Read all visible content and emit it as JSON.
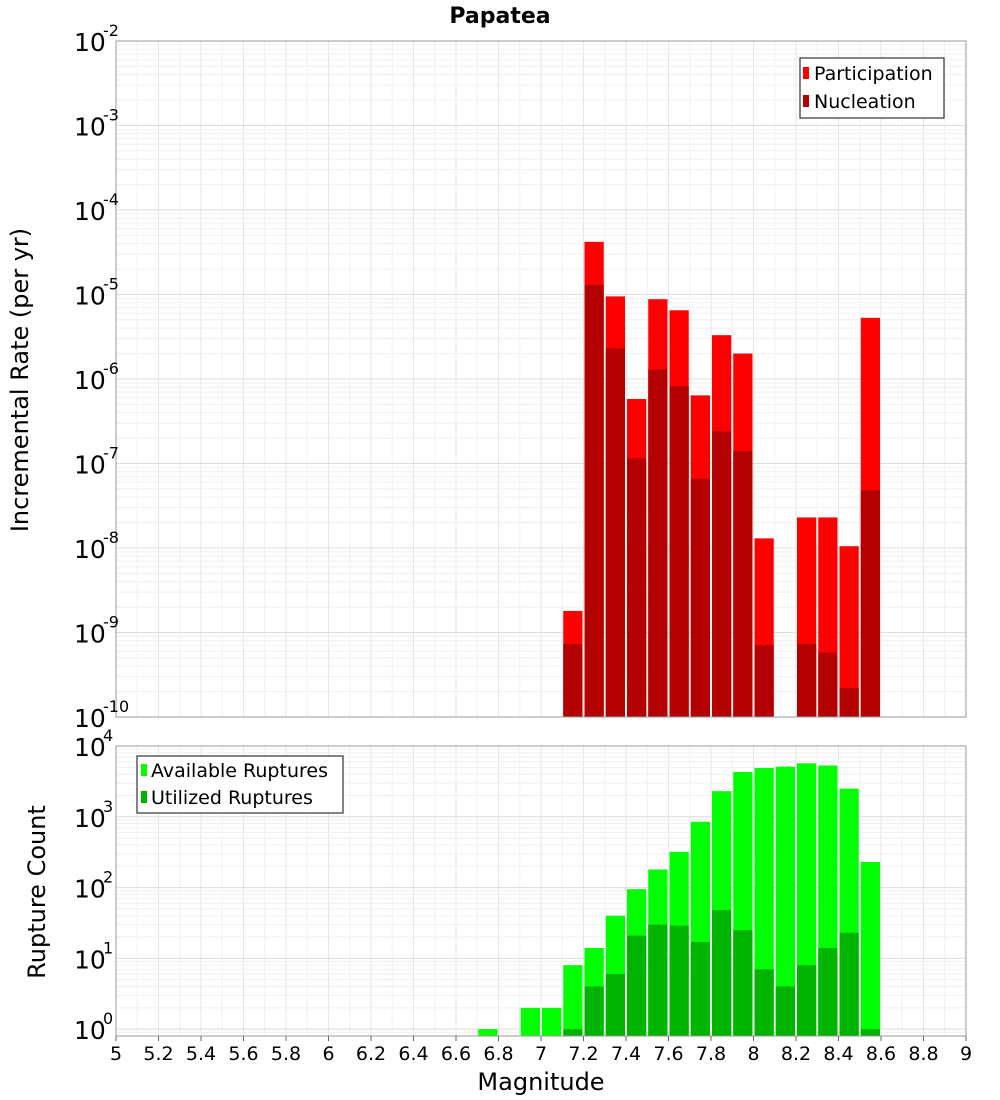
{
  "chart_data": [
    {
      "type": "bar",
      "title": "Papatea",
      "xlabel": "",
      "ylabel": "Incremental Rate (per yr)",
      "yscale": "log",
      "ylim": [
        1e-10,
        0.01
      ],
      "xlim": [
        5,
        9
      ],
      "grid": true,
      "legend_position": "top-right",
      "series": [
        {
          "name": "Participation",
          "color": "#ff0000",
          "x": [
            7.1,
            7.2,
            7.3,
            7.4,
            7.5,
            7.6,
            7.7,
            7.8,
            7.9,
            8.0,
            8.2,
            8.3,
            8.4,
            8.5
          ],
          "values": [
            1.8e-09,
            4.2e-05,
            9.5e-06,
            5.8e-07,
            8.8e-06,
            6.5e-06,
            6.4e-07,
            3.3e-06,
            2e-06,
            1.3e-08,
            2.3e-08,
            2.3e-08,
            1.05e-08,
            5.3e-06
          ]
        },
        {
          "name": "Nucleation",
          "color": "#b30000",
          "x": [
            7.1,
            7.2,
            7.3,
            7.4,
            7.5,
            7.6,
            7.7,
            7.8,
            7.9,
            8.0,
            8.2,
            8.3,
            8.4,
            8.5
          ],
          "values": [
            7.3e-10,
            1.3e-05,
            2.3e-06,
            1.15e-07,
            1.3e-06,
            8.2e-07,
            6.6e-08,
            2.4e-07,
            1.4e-07,
            7.1e-10,
            7.3e-10,
            5.8e-10,
            2.2e-10,
            4.8e-08
          ]
        }
      ]
    },
    {
      "type": "bar",
      "title": "",
      "xlabel": "Magnitude",
      "ylabel": "Rupture Count",
      "yscale": "log",
      "ylim": [
        0.8,
        10000
      ],
      "xlim": [
        5,
        9
      ],
      "grid": true,
      "legend_position": "top-left",
      "series": [
        {
          "name": "Available Ruptures",
          "color": "#00ff00",
          "x": [
            6.7,
            6.9,
            7.0,
            7.1,
            7.2,
            7.3,
            7.4,
            7.5,
            7.6,
            7.7,
            7.8,
            7.9,
            8.0,
            8.1,
            8.2,
            8.3,
            8.4,
            8.5
          ],
          "values": [
            1,
            2,
            2,
            8,
            14,
            40,
            95,
            180,
            320,
            850,
            2300,
            4300,
            4900,
            5100,
            5700,
            5300,
            2500,
            230
          ]
        },
        {
          "name": "Utilized Ruptures",
          "color": "#00b300",
          "x": [
            7.1,
            7.2,
            7.3,
            7.4,
            7.5,
            7.6,
            7.7,
            7.8,
            7.9,
            8.0,
            8.1,
            8.2,
            8.3,
            8.4,
            8.5
          ],
          "values": [
            1,
            4,
            6,
            21,
            30,
            29,
            17,
            48,
            25,
            7,
            4,
            8,
            14,
            23,
            1
          ]
        }
      ],
      "xticks": [
        "5",
        "5.2",
        "5.4",
        "5.6",
        "5.8",
        "6",
        "6.2",
        "6.4",
        "6.6",
        "6.8",
        "7",
        "7.2",
        "7.4",
        "7.6",
        "7.8",
        "8",
        "8.2",
        "8.4",
        "8.6",
        "8.8",
        "9"
      ]
    }
  ]
}
